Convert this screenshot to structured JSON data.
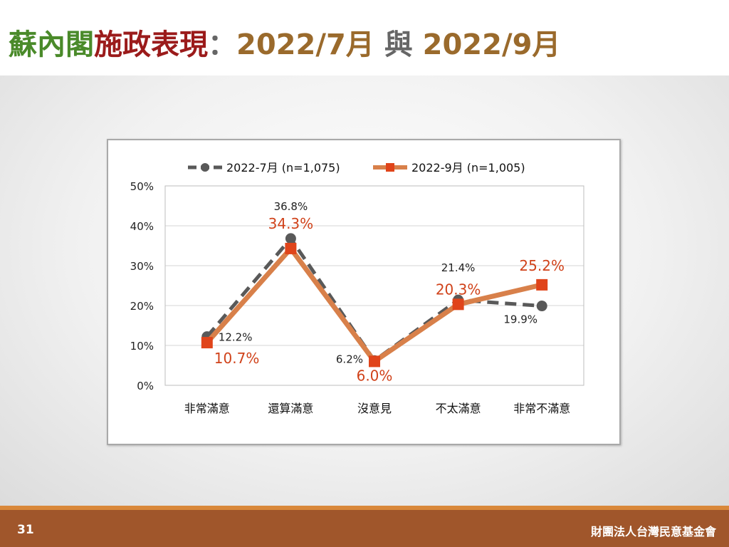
{
  "title": {
    "part1": "蘇內閣",
    "part2": "施政表現",
    "sep": "：",
    "part3": "2022/7月",
    "part4": " 與 ",
    "part5": "2022/9月"
  },
  "footer": {
    "page_number": "31",
    "organization": "財團法人台灣民意基金會"
  },
  "colors": {
    "series_jul": "#595959",
    "series_sep": "#d8804a",
    "marker_sep": "#e0441a",
    "label_jul": "#222222",
    "label_sep": "#d0421a"
  },
  "chart_data": {
    "type": "line",
    "categories": [
      "非常滿意",
      "還算滿意",
      "沒意見",
      "不太滿意",
      "非常不滿意"
    ],
    "series": [
      {
        "name": "2022-7月  (n=1,075)",
        "values": [
          12.2,
          36.8,
          6.2,
          21.4,
          19.9
        ],
        "labels": [
          "12.2%",
          "36.8%",
          "6.2%",
          "21.4%",
          "19.9%"
        ]
      },
      {
        "name": "2022-9月  (n=1,005)",
        "values": [
          10.7,
          34.3,
          6.0,
          20.3,
          25.2
        ],
        "labels": [
          "10.7%",
          "34.3%",
          "6.0%",
          "20.3%",
          "25.2%"
        ]
      }
    ],
    "yticks": [
      "0%",
      "10%",
      "20%",
      "30%",
      "40%",
      "50%"
    ],
    "ylim": [
      0,
      50
    ],
    "grid": true,
    "legend": "top"
  }
}
